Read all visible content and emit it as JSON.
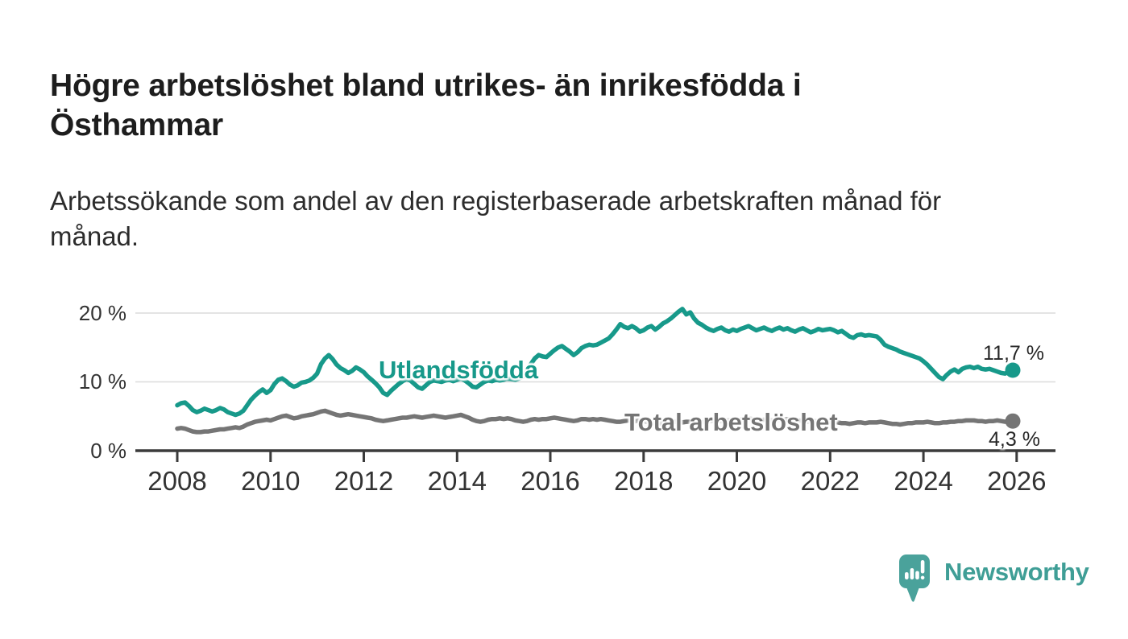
{
  "header": {
    "title_lines": [
      "Högre arbetslöshet bland utrikes- än inrikesfödda i",
      "Östhammar"
    ],
    "subtitle_lines": [
      "Arbetssökande som andel av den registerbaserade arbetskraften månad för",
      "månad."
    ]
  },
  "chart_data": {
    "type": "line",
    "x_unit": "month",
    "x_range": [
      "2008-01",
      "2025-12"
    ],
    "x_tick_years": [
      2008,
      2010,
      2012,
      2014,
      2016,
      2018,
      2020,
      2022,
      2024,
      2026
    ],
    "y_ticks": [
      {
        "value": 0,
        "label": "0 %"
      },
      {
        "value": 10,
        "label": "10 %"
      },
      {
        "value": 20,
        "label": "20 %"
      }
    ],
    "ylim": [
      0,
      21.5
    ],
    "grid": "horizontal",
    "axis_color": "#3b3b3b",
    "grid_color": "#dcdcdc",
    "series": [
      {
        "name": "Utlandsfödda",
        "color": "#17998a",
        "end_label": "11,7 %",
        "values": [
          6.6,
          6.9,
          7.0,
          6.5,
          5.9,
          5.6,
          5.8,
          6.1,
          5.9,
          5.7,
          5.9,
          6.2,
          6.0,
          5.6,
          5.4,
          5.2,
          5.4,
          5.8,
          6.6,
          7.4,
          8.0,
          8.5,
          8.9,
          8.4,
          8.8,
          9.7,
          10.3,
          10.5,
          10.1,
          9.6,
          9.3,
          9.5,
          9.9,
          10.0,
          10.2,
          10.6,
          11.2,
          12.6,
          13.4,
          13.9,
          13.3,
          12.5,
          12.0,
          11.7,
          11.3,
          11.6,
          12.1,
          11.8,
          11.4,
          10.8,
          10.3,
          9.8,
          9.2,
          8.4,
          8.1,
          8.7,
          9.2,
          9.7,
          10.1,
          10.4,
          10.2,
          9.7,
          9.2,
          9.0,
          9.5,
          10.0,
          10.2,
          10.1,
          10.0,
          10.2,
          10.3,
          10.1,
          10.3,
          10.5,
          10.2,
          9.8,
          9.3,
          9.2,
          9.6,
          10.0,
          10.2,
          10.1,
          10.3,
          10.2,
          10.3,
          10.5,
          10.4,
          10.3,
          10.5,
          10.8,
          11.6,
          12.6,
          13.4,
          13.9,
          13.7,
          13.6,
          14.1,
          14.6,
          15.0,
          15.2,
          14.8,
          14.4,
          13.9,
          14.3,
          14.9,
          15.2,
          15.4,
          15.3,
          15.4,
          15.7,
          16.0,
          16.3,
          16.9,
          17.6,
          18.4,
          18.0,
          17.8,
          18.1,
          17.8,
          17.3,
          17.5,
          17.9,
          18.1,
          17.6,
          18.0,
          18.5,
          18.8,
          19.2,
          19.7,
          20.2,
          20.6,
          19.8,
          20.1,
          19.2,
          18.6,
          18.3,
          17.9,
          17.6,
          17.4,
          17.7,
          17.9,
          17.5,
          17.3,
          17.6,
          17.4,
          17.7,
          17.9,
          18.1,
          17.8,
          17.5,
          17.7,
          17.9,
          17.6,
          17.4,
          17.7,
          17.9,
          17.6,
          17.8,
          17.5,
          17.3,
          17.6,
          17.8,
          17.5,
          17.2,
          17.4,
          17.7,
          17.5,
          17.6,
          17.7,
          17.5,
          17.2,
          17.4,
          17.0,
          16.6,
          16.4,
          16.8,
          16.9,
          16.7,
          16.8,
          16.7,
          16.6,
          16.1,
          15.4,
          15.1,
          14.9,
          14.7,
          14.4,
          14.2,
          14.0,
          13.8,
          13.6,
          13.4,
          13.0,
          12.5,
          11.9,
          11.3,
          10.7,
          10.4,
          11.0,
          11.5,
          11.8,
          11.4,
          11.9,
          12.1,
          12.2,
          12.0,
          12.2,
          11.9,
          11.8,
          11.9,
          11.7,
          11.5,
          11.3,
          11.2,
          11.5,
          11.7
        ]
      },
      {
        "name": "Total arbetslöshet",
        "color": "#757575",
        "end_label": "4,3 %",
        "values": [
          3.2,
          3.3,
          3.2,
          3.0,
          2.8,
          2.7,
          2.7,
          2.8,
          2.8,
          2.9,
          3.0,
          3.1,
          3.1,
          3.2,
          3.3,
          3.4,
          3.3,
          3.5,
          3.8,
          4.0,
          4.2,
          4.3,
          4.4,
          4.5,
          4.4,
          4.6,
          4.8,
          5.0,
          5.1,
          4.9,
          4.7,
          4.8,
          5.0,
          5.1,
          5.2,
          5.3,
          5.5,
          5.7,
          5.8,
          5.6,
          5.4,
          5.2,
          5.1,
          5.2,
          5.3,
          5.2,
          5.1,
          5.0,
          4.9,
          4.8,
          4.7,
          4.5,
          4.4,
          4.3,
          4.4,
          4.5,
          4.6,
          4.7,
          4.8,
          4.8,
          4.9,
          5.0,
          4.9,
          4.8,
          4.9,
          5.0,
          5.1,
          5.0,
          4.9,
          4.8,
          4.9,
          5.0,
          5.1,
          5.2,
          5.0,
          4.8,
          4.5,
          4.3,
          4.2,
          4.3,
          4.5,
          4.6,
          4.6,
          4.7,
          4.6,
          4.7,
          4.6,
          4.4,
          4.3,
          4.2,
          4.3,
          4.5,
          4.6,
          4.5,
          4.6,
          4.6,
          4.7,
          4.8,
          4.7,
          4.6,
          4.5,
          4.4,
          4.3,
          4.4,
          4.6,
          4.6,
          4.5,
          4.6,
          4.5,
          4.6,
          4.5,
          4.4,
          4.3,
          4.2,
          4.2,
          4.3,
          4.4,
          4.4,
          4.3,
          4.4,
          4.3,
          4.2,
          4.1,
          4.0,
          4.0,
          3.9,
          4.0,
          4.1,
          4.2,
          4.2,
          4.1,
          4.2,
          4.2,
          4.3,
          4.2,
          4.1,
          4.2,
          4.3,
          4.4,
          4.4,
          4.3,
          4.4,
          4.4,
          4.5,
          4.4,
          4.5,
          4.6,
          4.7,
          4.6,
          4.5,
          4.4,
          4.5,
          4.5,
          4.4,
          4.4,
          4.5,
          4.5,
          4.6,
          4.5,
          4.4,
          4.4,
          4.3,
          4.2,
          4.3,
          4.3,
          4.2,
          4.2,
          4.3,
          4.2,
          4.2,
          4.1,
          4.0,
          4.0,
          3.9,
          4.0,
          4.1,
          4.1,
          4.0,
          4.1,
          4.1,
          4.1,
          4.2,
          4.1,
          4.0,
          3.9,
          3.9,
          3.8,
          3.9,
          4.0,
          4.0,
          4.1,
          4.1,
          4.1,
          4.2,
          4.1,
          4.0,
          4.0,
          4.1,
          4.1,
          4.2,
          4.2,
          4.3,
          4.3,
          4.4,
          4.4,
          4.4,
          4.3,
          4.3,
          4.2,
          4.3,
          4.3,
          4.4,
          4.3,
          4.2,
          4.3,
          4.3
        ]
      }
    ]
  },
  "footer": {
    "brand": "Newsworthy",
    "logo_icon": "bar-chart-speech-bubble-icon",
    "brand_color": "#459f97"
  }
}
